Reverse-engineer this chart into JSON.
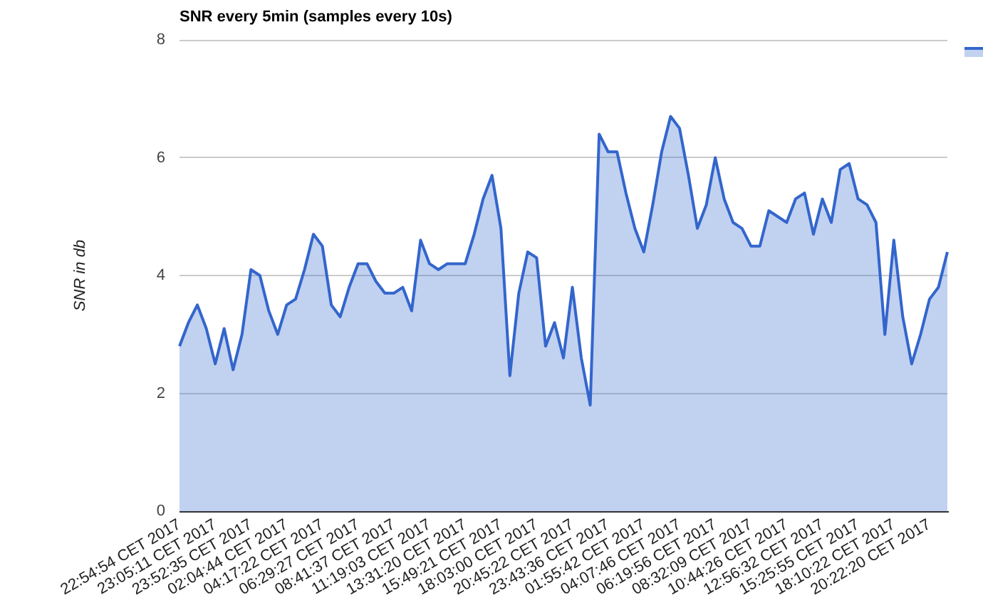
{
  "chart_data": {
    "type": "area",
    "title": "SNR every 5min (samples every 10s)",
    "ylabel": "SNR in db",
    "categories": [
      "22:54:54 CET 2017",
      null,
      null,
      null,
      "23:05:11 CET 2017",
      null,
      null,
      null,
      "23:52:35 CET 2017",
      null,
      null,
      null,
      "02:04:44 CET 2017",
      null,
      null,
      null,
      "04:17:22 CET 2017",
      null,
      null,
      null,
      "06:29:27 CET 2017",
      null,
      null,
      null,
      "08:41:37 CET 2017",
      null,
      null,
      null,
      "11:19:03 CET 2017",
      null,
      null,
      null,
      "13:31:20 CET 2017",
      null,
      null,
      null,
      "15:49:21 CET 2017",
      null,
      null,
      null,
      "18:03:00 CET 2017",
      null,
      null,
      null,
      "20:45:22 CET 2017",
      null,
      null,
      null,
      "23:43:36 CET 2017",
      null,
      null,
      null,
      "01:55:42 CET 2017",
      null,
      null,
      null,
      "04:07:46 CET 2017",
      null,
      null,
      null,
      "06:19:56 CET 2017",
      null,
      null,
      null,
      "08:32:09 CET 2017",
      null,
      null,
      null,
      "10:44:26 CET 2017",
      null,
      null,
      null,
      "12:56:32 CET 2017",
      null,
      null,
      null,
      "15:25:55 CET 2017",
      null,
      null,
      null,
      "18:10:22 CET 2017",
      null,
      null,
      null,
      "20:22:20 CET 2017",
      null,
      null
    ],
    "series": [
      {
        "color": "#3366cc",
        "values": [
          2.8,
          3.2,
          3.5,
          3.1,
          2.5,
          3.1,
          2.4,
          3.0,
          4.1,
          4.0,
          3.4,
          3.0,
          3.5,
          3.6,
          4.1,
          4.7,
          4.5,
          3.5,
          3.3,
          3.8,
          4.2,
          4.2,
          3.9,
          3.7,
          3.7,
          3.8,
          3.4,
          4.6,
          4.2,
          4.1,
          4.2,
          4.2,
          4.2,
          4.7,
          5.3,
          5.7,
          4.8,
          2.3,
          3.7,
          4.4,
          4.3,
          2.8,
          3.2,
          2.6,
          3.8,
          2.6,
          1.8,
          6.4,
          6.1,
          6.1,
          5.4,
          4.8,
          4.4,
          5.2,
          6.1,
          6.7,
          6.5,
          5.7,
          4.8,
          5.2,
          6.0,
          5.3,
          4.9,
          4.8,
          4.5,
          4.5,
          5.1,
          5.0,
          4.9,
          5.3,
          5.4,
          4.7,
          5.3,
          4.9,
          5.8,
          5.9,
          5.3,
          5.2,
          4.9,
          3.0,
          4.6,
          3.3,
          2.5,
          3.0,
          3.6,
          3.8,
          4.4
        ]
      }
    ],
    "ylim": [
      0,
      8
    ],
    "yticks": [
      0,
      2,
      4,
      6,
      8
    ],
    "grid": "y"
  }
}
